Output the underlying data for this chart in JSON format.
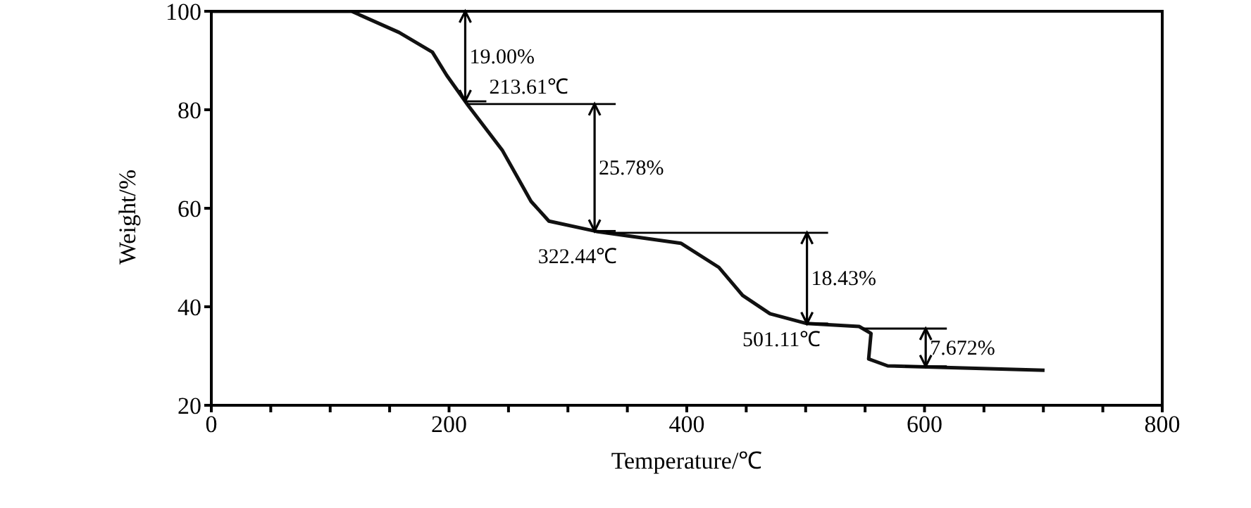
{
  "chart_data": {
    "type": "line",
    "xlabel": "Temperature/℃",
    "ylabel": "Weight/%",
    "xlim": [
      0,
      800
    ],
    "ylim": [
      20,
      100
    ],
    "xticks": [
      0,
      {
        "value": 50,
        "label": null
      },
      200,
      {
        "value": 150,
        "label": null
      },
      {
        "value": 100,
        "label": null
      },
      {
        "value": 250,
        "label": null
      },
      {
        "value": 300,
        "label": null
      },
      {
        "value": 350,
        "label": null
      },
      400,
      {
        "value": 450,
        "label": null
      },
      {
        "value": 500,
        "label": null
      },
      {
        "value": 550,
        "label": null
      },
      600,
      {
        "value": 650,
        "label": null
      },
      {
        "value": 700,
        "label": null
      },
      {
        "value": 750,
        "label": null
      },
      800
    ],
    "yticks": [
      20,
      40,
      60,
      80,
      100
    ],
    "grid": false,
    "legend": false,
    "marker": "none",
    "line_style": "solid",
    "series": [
      {
        "color": "#111111",
        "x": [
          0,
          118,
          158,
          186,
          198,
          216,
          245,
          269,
          284,
          324,
          395,
          427,
          447,
          470,
          501,
          545,
          555,
          553,
          569,
          701
        ],
        "values": [
          100,
          100,
          95.7,
          91.7,
          87,
          80.9,
          71.7,
          61.4,
          57.4,
          55.3,
          52.9,
          48,
          42.3,
          38.6,
          36.6,
          36,
          34.6,
          29.4,
          28,
          27.1
        ]
      }
    ],
    "annotations": [
      "19.00%",
      {
        "text": "213.61℃",
        "x": 213.61,
        "y": 81
      },
      "25.78%",
      {
        "text": "322.44℃",
        "x": 322.44,
        "y": 55.2
      },
      "18.43%",
      {
        "text": "501.11℃",
        "x": 501.11,
        "y": 36.6
      },
      {
        "text": "7.672%",
        "x": 601,
        "y": 27.9
      }
    ]
  }
}
